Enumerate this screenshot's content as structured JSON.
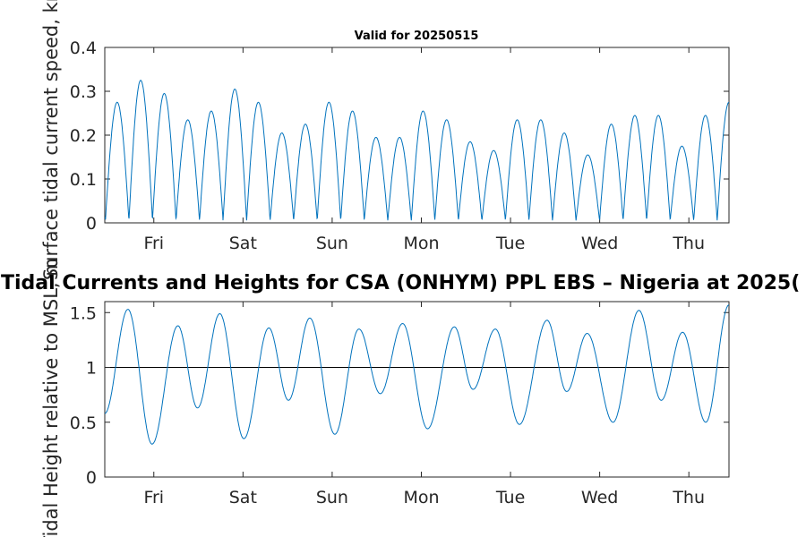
{
  "chart_data": [
    {
      "type": "line",
      "title": "Valid for 20250515",
      "ylabel": "Surface tidal current speed, kn",
      "xlabel": "",
      "x_day_range": [
        0,
        7.0
      ],
      "xticks": [
        {
          "label": "Fri",
          "day": 0.55
        },
        {
          "label": "Sat",
          "day": 1.55
        },
        {
          "label": "Sun",
          "day": 2.55
        },
        {
          "label": "Mon",
          "day": 3.55
        },
        {
          "label": "Tue",
          "day": 4.55
        },
        {
          "label": "Wed",
          "day": 5.55
        },
        {
          "label": "Thu",
          "day": 6.55
        }
      ],
      "ylim": [
        0,
        0.4
      ],
      "yticks": [
        "0",
        "0.1",
        "0.2",
        "0.3",
        "0.4"
      ],
      "yticks_values": [
        0,
        0.1,
        0.2,
        0.3,
        0.4
      ],
      "grid": false,
      "series": [
        {
          "color": "#0072bd",
          "peaks": [
            0.27,
            0.32,
            0.29,
            0.23,
            0.25,
            0.3,
            0.27,
            0.2,
            0.22,
            0.27,
            0.25,
            0.19,
            0.19,
            0.25,
            0.23,
            0.18,
            0.16,
            0.23,
            0.23,
            0.2,
            0.15,
            0.22,
            0.24,
            0.24,
            0.17,
            0.24,
            0.27
          ]
        }
      ]
    },
    {
      "type": "line",
      "title": "Tidal Currents and Heights for CSA (ONHYM) PPL EBS  – Nigeria at 2025(",
      "ylabel": "Tidal Height relative to MSL, m",
      "xlabel": "",
      "x_day_range": [
        0,
        7.0
      ],
      "xticks": [
        {
          "label": "Fri",
          "day": 0.55
        },
        {
          "label": "Sat",
          "day": 1.55
        },
        {
          "label": "Sun",
          "day": 2.55
        },
        {
          "label": "Mon",
          "day": 3.55
        },
        {
          "label": "Tue",
          "day": 4.55
        },
        {
          "label": "Wed",
          "day": 5.55
        },
        {
          "label": "Thu",
          "day": 6.55
        }
      ],
      "ylim": [
        0,
        1.6
      ],
      "yticks": [
        "0",
        "0.5",
        "1",
        "1.5"
      ],
      "yticks_values": [
        0,
        0.5,
        1,
        1.5
      ],
      "reference_line": 1,
      "grid": false,
      "series": [
        {
          "color": "#0072bd",
          "extrema": [
            {
              "day": 0.0,
              "value": 0.58
            },
            {
              "day": 0.26,
              "value": 1.53
            },
            {
              "day": 0.53,
              "value": 0.3
            },
            {
              "day": 0.82,
              "value": 1.38
            },
            {
              "day": 1.04,
              "value": 0.63
            },
            {
              "day": 1.29,
              "value": 1.49
            },
            {
              "day": 1.56,
              "value": 0.35
            },
            {
              "day": 1.84,
              "value": 1.36
            },
            {
              "day": 2.06,
              "value": 0.7
            },
            {
              "day": 2.3,
              "value": 1.45
            },
            {
              "day": 2.58,
              "value": 0.39
            },
            {
              "day": 2.85,
              "value": 1.35
            },
            {
              "day": 3.09,
              "value": 0.76
            },
            {
              "day": 3.34,
              "value": 1.4
            },
            {
              "day": 3.62,
              "value": 0.44
            },
            {
              "day": 3.92,
              "value": 1.37
            },
            {
              "day": 4.13,
              "value": 0.8
            },
            {
              "day": 4.38,
              "value": 1.35
            },
            {
              "day": 4.65,
              "value": 0.48
            },
            {
              "day": 4.96,
              "value": 1.43
            },
            {
              "day": 5.18,
              "value": 0.78
            },
            {
              "day": 5.41,
              "value": 1.31
            },
            {
              "day": 5.7,
              "value": 0.5
            },
            {
              "day": 5.99,
              "value": 1.52
            },
            {
              "day": 6.24,
              "value": 0.7
            },
            {
              "day": 6.48,
              "value": 1.32
            },
            {
              "day": 6.74,
              "value": 0.5
            },
            {
              "day": 7.0,
              "value": 1.57
            }
          ]
        }
      ]
    }
  ]
}
